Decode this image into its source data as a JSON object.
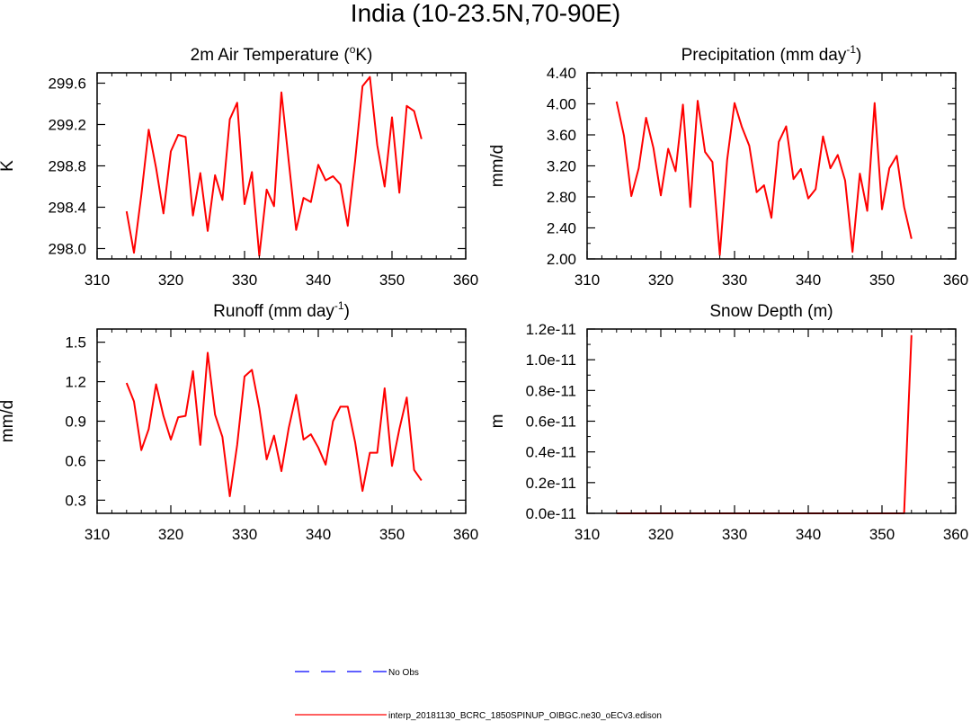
{
  "page_title": "India (10-23.5N,70-90E)",
  "chart_data": [
    {
      "type": "line",
      "title": "2m Air Temperature (",
      "title_sup": "o",
      "title_after": "K)",
      "ylabel": "K",
      "xlim": [
        310,
        360
      ],
      "ylim": [
        297.9,
        299.7
      ],
      "xticks": [
        310,
        320,
        330,
        340,
        350,
        360
      ],
      "xtick_labels": [
        "310",
        "320",
        "330",
        "340",
        "350",
        "360"
      ],
      "yticks": [
        298.0,
        298.4,
        298.8,
        299.2,
        299.6
      ],
      "ytick_labels": [
        "298.0",
        "298.4",
        "298.8",
        "299.2",
        "299.6"
      ],
      "color": "#ff0000",
      "x": [
        314,
        315,
        316,
        317,
        318,
        319,
        320,
        321,
        322,
        323,
        324,
        325,
        326,
        327,
        328,
        329,
        330,
        331,
        332,
        333,
        334,
        335,
        336,
        337,
        338,
        339,
        340,
        341,
        342,
        343,
        344,
        345,
        346,
        347,
        348,
        349,
        350,
        351,
        352,
        353,
        354
      ],
      "values": [
        298.36,
        297.96,
        298.52,
        299.15,
        298.78,
        298.34,
        298.94,
        299.1,
        299.08,
        298.32,
        298.73,
        298.17,
        298.71,
        298.47,
        299.25,
        299.41,
        298.43,
        298.74,
        297.93,
        298.57,
        298.41,
        299.51,
        298.84,
        298.18,
        298.49,
        298.45,
        298.81,
        298.66,
        298.7,
        298.62,
        298.22,
        298.85,
        299.57,
        299.66,
        299.0,
        298.6,
        299.27,
        298.54,
        299.38,
        299.33,
        299.06
      ]
    },
    {
      "type": "line",
      "title": "Precipitation (mm day",
      "title_sup": "-1",
      "title_after": ")",
      "ylabel": "mm/d",
      "xlim": [
        310,
        360
      ],
      "ylim": [
        2.0,
        4.4
      ],
      "xticks": [
        310,
        320,
        330,
        340,
        350,
        360
      ],
      "xtick_labels": [
        "310",
        "320",
        "330",
        "340",
        "350",
        "360"
      ],
      "yticks": [
        2.0,
        2.4,
        2.8,
        3.2,
        3.6,
        4.0,
        4.4
      ],
      "ytick_labels": [
        "2.00",
        "2.40",
        "2.80",
        "3.20",
        "3.60",
        "4.00",
        "4.40"
      ],
      "color": "#ff0000",
      "x": [
        314,
        315,
        316,
        317,
        318,
        319,
        320,
        321,
        322,
        323,
        324,
        325,
        326,
        327,
        328,
        329,
        330,
        331,
        332,
        333,
        334,
        335,
        336,
        337,
        338,
        339,
        340,
        341,
        342,
        343,
        344,
        345,
        346,
        347,
        348,
        349,
        350,
        351,
        352,
        353,
        354
      ],
      "values": [
        4.03,
        3.59,
        2.81,
        3.17,
        3.82,
        3.43,
        2.82,
        3.42,
        3.13,
        3.99,
        2.67,
        4.04,
        3.38,
        3.25,
        2.05,
        3.28,
        4.01,
        3.7,
        3.46,
        2.86,
        2.95,
        2.53,
        3.51,
        3.71,
        3.03,
        3.16,
        2.78,
        2.9,
        3.58,
        3.17,
        3.34,
        3.01,
        2.09,
        3.1,
        2.62,
        4.01,
        2.64,
        3.17,
        3.33,
        2.67,
        2.26
      ]
    },
    {
      "type": "line",
      "title": "Runoff (mm day",
      "title_sup": "-1",
      "title_after": ")",
      "ylabel": "mm/d",
      "xlim": [
        310,
        360
      ],
      "ylim": [
        0.2,
        1.6
      ],
      "xticks": [
        310,
        320,
        330,
        340,
        350,
        360
      ],
      "xtick_labels": [
        "310",
        "320",
        "330",
        "340",
        "350",
        "360"
      ],
      "yticks": [
        0.3,
        0.6,
        0.9,
        1.2,
        1.5
      ],
      "ytick_labels": [
        "0.3",
        "0.6",
        "0.9",
        "1.2",
        "1.5"
      ],
      "color": "#ff0000",
      "x": [
        314,
        315,
        316,
        317,
        318,
        319,
        320,
        321,
        322,
        323,
        324,
        325,
        326,
        327,
        328,
        329,
        330,
        331,
        332,
        333,
        334,
        335,
        336,
        337,
        338,
        339,
        340,
        341,
        342,
        343,
        344,
        345,
        346,
        347,
        348,
        349,
        350,
        351,
        352,
        353,
        354
      ],
      "values": [
        1.19,
        1.05,
        0.68,
        0.84,
        1.18,
        0.94,
        0.76,
        0.93,
        0.94,
        1.28,
        0.72,
        1.42,
        0.95,
        0.78,
        0.33,
        0.72,
        1.24,
        1.29,
        1.0,
        0.61,
        0.79,
        0.52,
        0.85,
        1.1,
        0.76,
        0.8,
        0.7,
        0.57,
        0.9,
        1.01,
        1.01,
        0.74,
        0.37,
        0.66,
        0.66,
        1.15,
        0.56,
        0.84,
        1.08,
        0.53,
        0.45
      ]
    },
    {
      "type": "line",
      "title": "Snow Depth (m)",
      "title_sup": "",
      "title_after": "",
      "ylabel": "m",
      "xlim": [
        310,
        360
      ],
      "ylim": [
        0.0,
        1.2e-11
      ],
      "xticks": [
        310,
        320,
        330,
        340,
        350,
        360
      ],
      "xtick_labels": [
        "310",
        "320",
        "330",
        "340",
        "350",
        "360"
      ],
      "yticks": [
        0,
        2e-12,
        4e-12,
        6e-12,
        8e-12,
        1e-11,
        1.2e-11
      ],
      "ytick_labels": [
        "0.0e-11",
        "0.2e-11",
        "0.4e-11",
        "0.6e-11",
        "0.8e-11",
        "1.0e-11",
        "1.2e-11"
      ],
      "color": "#ff0000",
      "x": [
        314,
        315,
        316,
        317,
        318,
        319,
        320,
        321,
        322,
        323,
        324,
        325,
        326,
        327,
        328,
        329,
        330,
        331,
        332,
        333,
        334,
        335,
        336,
        337,
        338,
        339,
        340,
        341,
        342,
        343,
        344,
        345,
        346,
        347,
        348,
        349,
        350,
        351,
        352,
        353,
        354
      ],
      "values": [
        0,
        0,
        0,
        0,
        0,
        0,
        0,
        0,
        0,
        0,
        0,
        0,
        0,
        0,
        0,
        0,
        0,
        0,
        0,
        0,
        0,
        0,
        0,
        0,
        0,
        0,
        0,
        0,
        0,
        0,
        0,
        0,
        0,
        0,
        0,
        0,
        0,
        0,
        0,
        0,
        1.16e-11
      ]
    }
  ],
  "legend": [
    {
      "label": "No Obs",
      "color": "#0000ff",
      "style": "dashed"
    },
    {
      "label": "interp_20181130_BCRC_1850SPINUP_OIBGC.ne30_oECv3.edison",
      "color": "#ff0000",
      "style": "solid"
    }
  ]
}
